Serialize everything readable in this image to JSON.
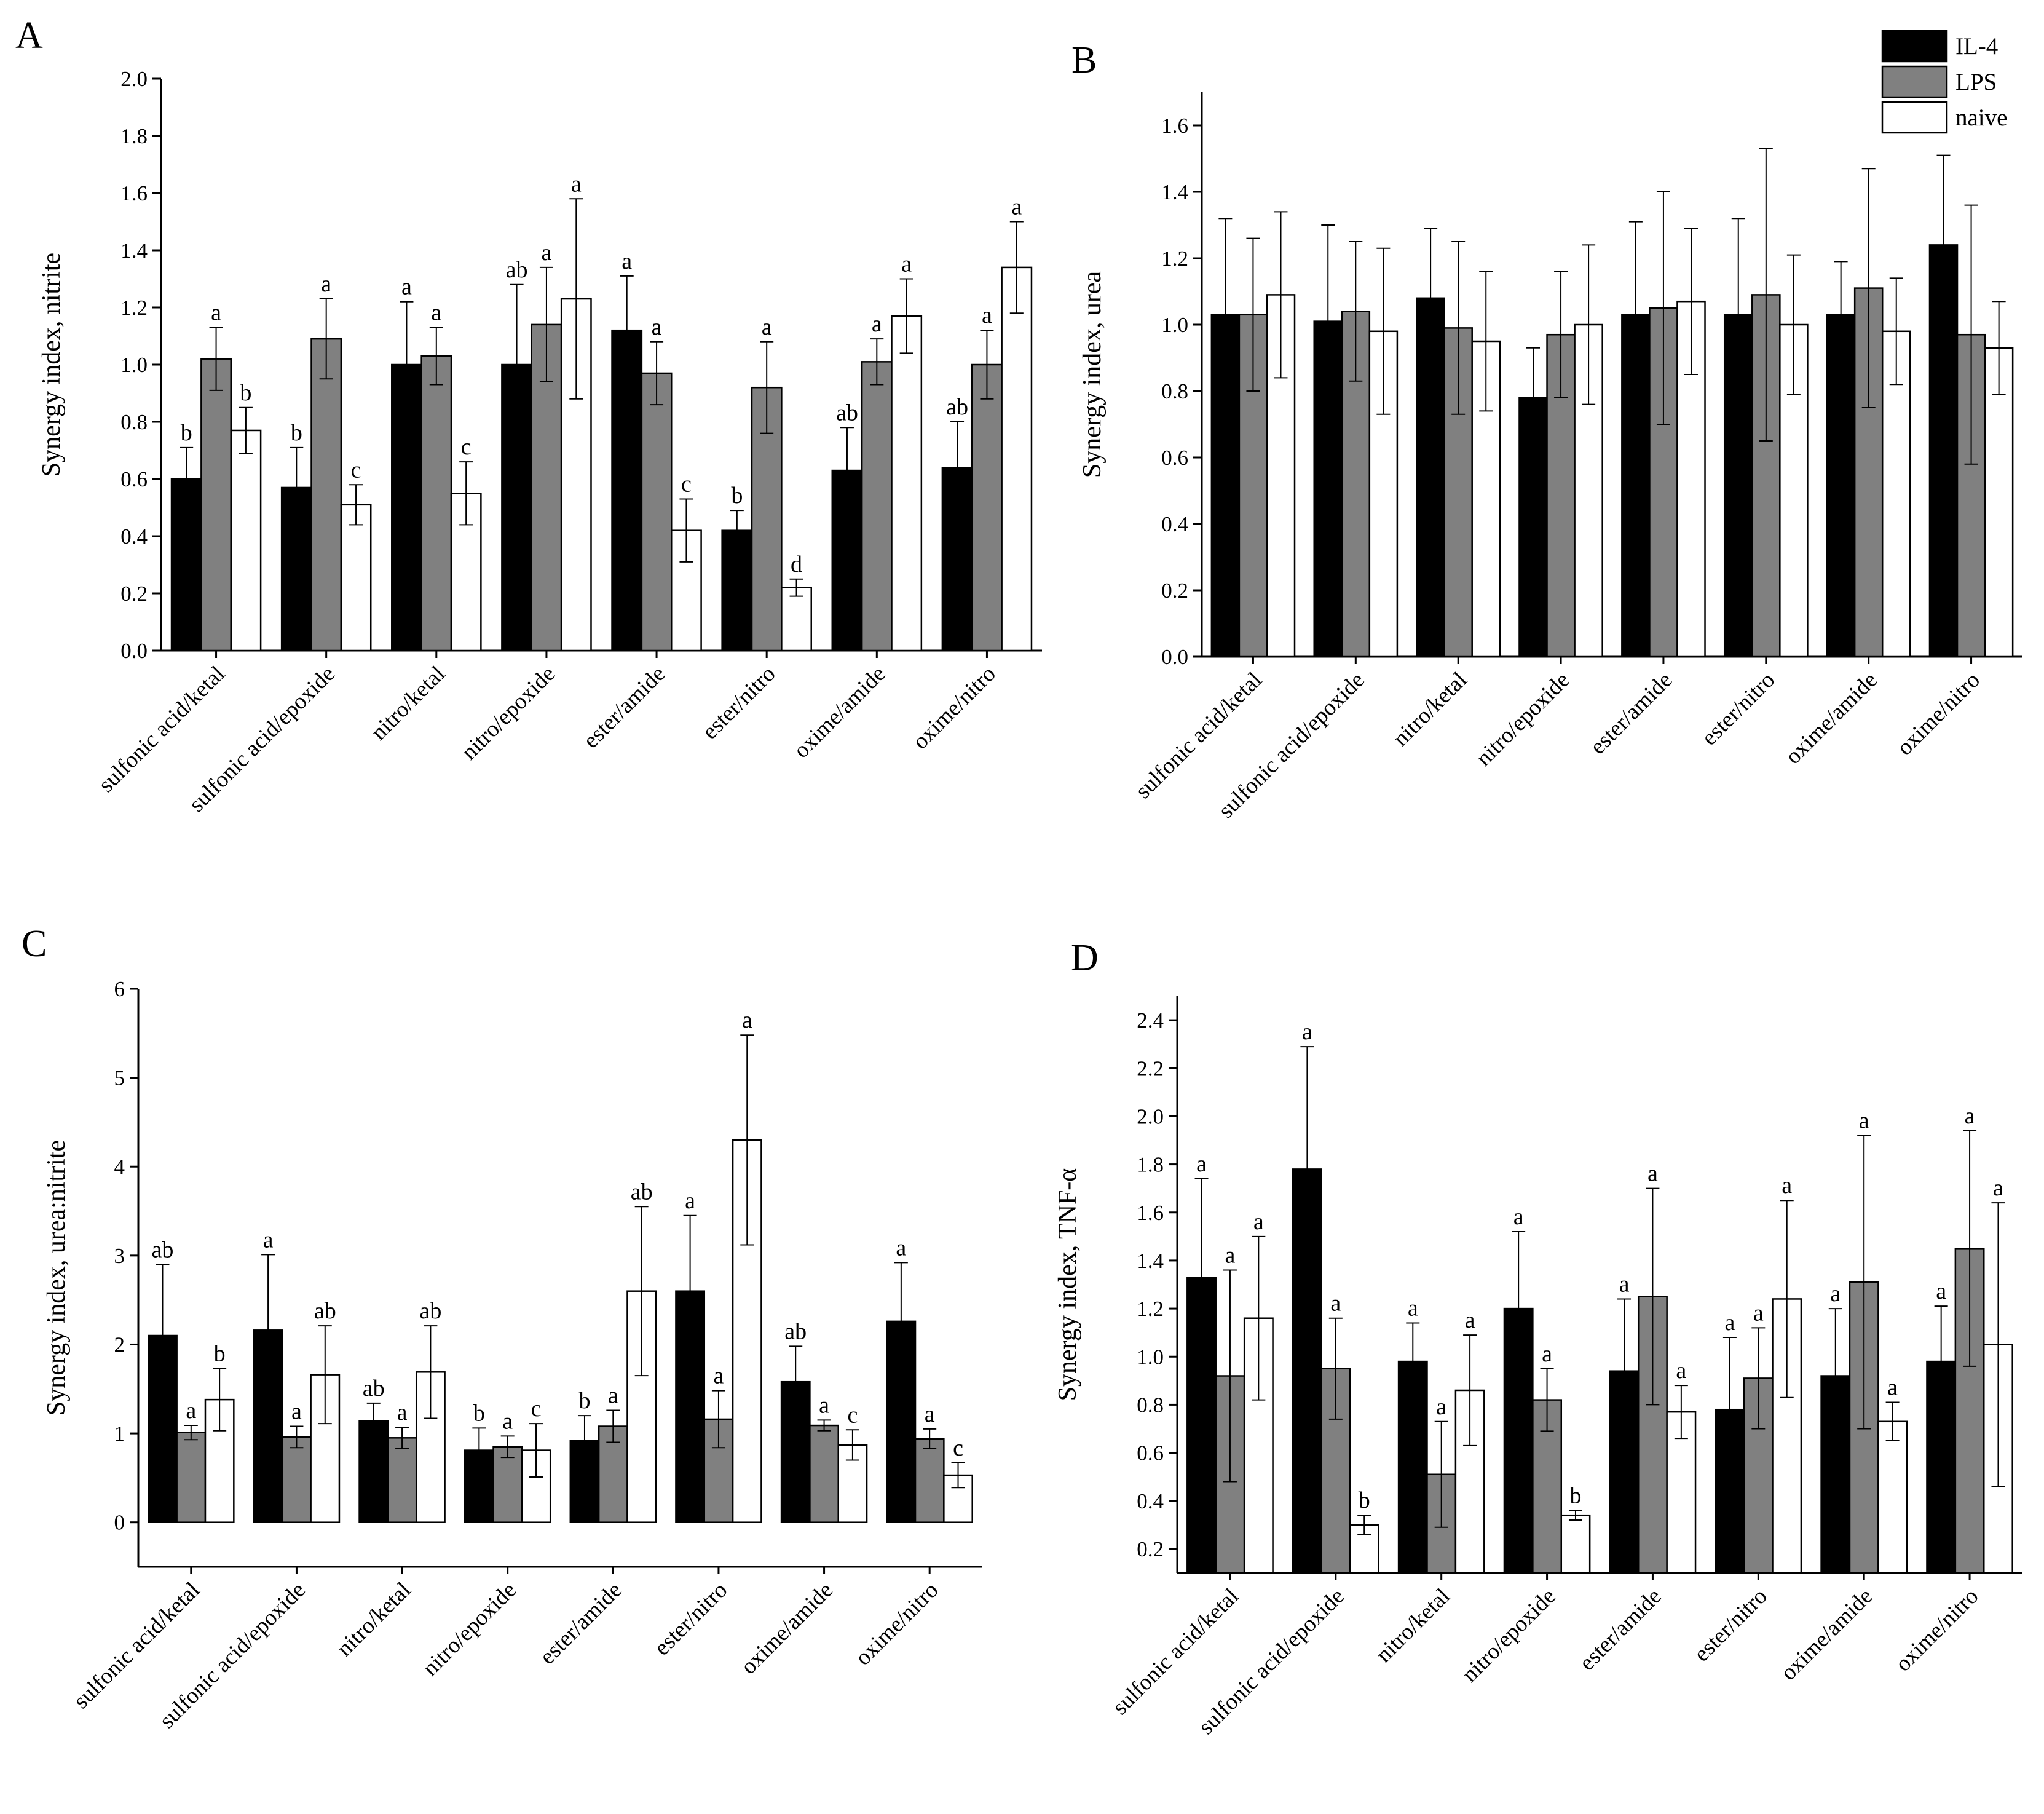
{
  "chart_data": [
    {
      "id": "A",
      "type": "bar",
      "panel_label": "A",
      "ylabel": "Synergy index, nitrite",
      "xlabel": "",
      "ylim": [
        0,
        2.0
      ],
      "yticks": [
        "0.0",
        "0.2",
        "0.4",
        "0.6",
        "0.8",
        "1.0",
        "1.2",
        "1.4",
        "1.6",
        "1.8",
        "2.0"
      ],
      "categories": [
        "sulfonic acid/ketal",
        "sulfonic acid/epoxide",
        "nitro/ketal",
        "nitro/epoxide",
        "ester/amide",
        "ester/nitro",
        "oxime/amide",
        "oxime/nitro"
      ],
      "series": [
        {
          "name": "IL-4",
          "values": [
            0.6,
            0.57,
            1.0,
            1.0,
            1.12,
            0.42,
            0.63,
            0.64
          ],
          "errors": [
            0.11,
            0.14,
            0.22,
            0.28,
            0.19,
            0.07,
            0.15,
            0.16
          ],
          "labels": [
            "b",
            "b",
            "a",
            "ab",
            "a",
            "b",
            "ab",
            "ab"
          ]
        },
        {
          "name": "LPS",
          "values": [
            1.02,
            1.09,
            1.03,
            1.14,
            0.97,
            0.92,
            1.01,
            1.0
          ],
          "errors": [
            0.11,
            0.14,
            0.1,
            0.2,
            0.11,
            0.16,
            0.08,
            0.12
          ],
          "labels": [
            "a",
            "a",
            "a",
            "a",
            "a",
            "a",
            "a",
            "a"
          ]
        },
        {
          "name": "naive",
          "values": [
            0.77,
            0.51,
            0.55,
            1.23,
            0.42,
            0.22,
            1.17,
            1.34
          ],
          "errors": [
            0.08,
            0.07,
            0.11,
            0.35,
            0.11,
            0.03,
            0.13,
            0.16
          ],
          "labels": [
            "b",
            "c",
            "c",
            "a",
            "c",
            "d",
            "a",
            "a"
          ]
        }
      ]
    },
    {
      "id": "B",
      "type": "bar",
      "panel_label": "B",
      "ylabel": "Synergy index, urea",
      "xlabel": "",
      "ylim": [
        0,
        1.7
      ],
      "yticks": [
        "0.0",
        "0.2",
        "0.4",
        "0.6",
        "0.8",
        "1.0",
        "1.2",
        "1.4",
        "1.6"
      ],
      "categories": [
        "sulfonic acid/ketal",
        "sulfonic acid/epoxide",
        "nitro/ketal",
        "nitro/epoxide",
        "ester/amide",
        "ester/nitro",
        "oxime/amide",
        "oxime/nitro"
      ],
      "series": [
        {
          "name": "IL-4",
          "values": [
            1.03,
            1.01,
            1.08,
            0.78,
            1.03,
            1.03,
            1.03,
            1.24
          ],
          "errors": [
            0.29,
            0.29,
            0.21,
            0.15,
            0.28,
            0.29,
            0.16,
            0.27
          ],
          "labels": []
        },
        {
          "name": "LPS",
          "values": [
            1.03,
            1.04,
            0.99,
            0.97,
            1.05,
            1.09,
            1.11,
            0.97
          ],
          "errors": [
            0.23,
            0.21,
            0.26,
            0.19,
            0.35,
            0.44,
            0.36,
            0.39
          ],
          "labels": []
        },
        {
          "name": "naive",
          "values": [
            1.09,
            0.98,
            0.95,
            1.0,
            1.07,
            1.0,
            0.98,
            0.93
          ],
          "errors": [
            0.25,
            0.25,
            0.21,
            0.24,
            0.22,
            0.21,
            0.16,
            0.14
          ],
          "labels": []
        }
      ],
      "legend": {
        "placement": "top-right",
        "entries": [
          "IL-4",
          "LPS",
          "naive"
        ]
      }
    },
    {
      "id": "C",
      "type": "bar",
      "panel_label": "C",
      "ylabel": "Synergy index, urea:nitrite",
      "xlabel": "",
      "ylim": [
        -0.5,
        6
      ],
      "yticks": [
        "0",
        "1",
        "2",
        "3",
        "4",
        "5",
        "6"
      ],
      "categories": [
        "sulfonic acid/ketal",
        "sulfonic acid/epoxide",
        "nitro/ketal",
        "nitro/epoxide",
        "ester/amide",
        "ester/nitro",
        "oxime/amide",
        "oxime/nitro"
      ],
      "series": [
        {
          "name": "IL-4",
          "values": [
            2.1,
            2.16,
            1.14,
            0.81,
            0.92,
            2.6,
            1.58,
            2.26
          ],
          "errors": [
            0.8,
            0.85,
            0.2,
            0.25,
            0.28,
            0.85,
            0.4,
            0.66
          ],
          "labels": [
            "ab",
            "a",
            "ab",
            "b",
            "b",
            "a",
            "ab",
            "a"
          ]
        },
        {
          "name": "LPS",
          "values": [
            1.01,
            0.96,
            0.95,
            0.85,
            1.08,
            1.16,
            1.09,
            0.94
          ],
          "errors": [
            0.08,
            0.12,
            0.12,
            0.12,
            0.18,
            0.32,
            0.06,
            0.11
          ],
          "labels": [
            "a",
            "a",
            "a",
            "a",
            "a",
            "a",
            "a",
            "a"
          ]
        },
        {
          "name": "naive",
          "values": [
            1.38,
            1.66,
            1.69,
            0.81,
            2.6,
            4.3,
            0.87,
            0.53
          ],
          "errors": [
            0.35,
            0.55,
            0.52,
            0.3,
            0.95,
            1.18,
            0.17,
            0.14
          ],
          "labels": [
            "b",
            "ab",
            "ab",
            "c",
            "ab",
            "a",
            "c",
            "c"
          ]
        }
      ]
    },
    {
      "id": "D",
      "type": "bar",
      "panel_label": "D",
      "ylabel": "Synergy index, TNF-α",
      "xlabel": "",
      "ylim": [
        0.1,
        2.5
      ],
      "yticks": [
        "0.2",
        "0.4",
        "0.6",
        "0.8",
        "1.0",
        "1.2",
        "1.4",
        "1.6",
        "1.8",
        "2.0",
        "2.2",
        "2.4"
      ],
      "categories": [
        "sulfonic acid/ketal",
        "sulfonic acid/epoxide",
        "nitro/ketal",
        "nitro/epoxide",
        "ester/amide",
        "ester/nitro",
        "oxime/amide",
        "oxime/nitro"
      ],
      "series": [
        {
          "name": "IL-4",
          "values": [
            1.33,
            1.78,
            0.98,
            1.2,
            0.94,
            0.78,
            0.92,
            0.98
          ],
          "errors": [
            0.41,
            0.51,
            0.16,
            0.32,
            0.3,
            0.3,
            0.28,
            0.23
          ],
          "labels": [
            "a",
            "a",
            "a",
            "a",
            "a",
            "a",
            "a",
            "a"
          ]
        },
        {
          "name": "LPS",
          "values": [
            0.92,
            0.95,
            0.51,
            0.82,
            1.25,
            0.91,
            1.31,
            1.45
          ],
          "errors": [
            0.44,
            0.21,
            0.22,
            0.13,
            0.45,
            0.21,
            0.61,
            0.49
          ],
          "labels": [
            "a",
            "a",
            "a",
            "a",
            "a",
            "a",
            "a",
            "a"
          ]
        },
        {
          "name": "naive",
          "values": [
            1.16,
            0.3,
            0.86,
            0.34,
            0.77,
            1.24,
            0.73,
            1.05
          ],
          "errors": [
            0.34,
            0.04,
            0.23,
            0.02,
            0.11,
            0.41,
            0.08,
            0.59
          ],
          "labels": [
            "a",
            "b",
            "a",
            "b",
            "a",
            "a",
            "a",
            "a"
          ]
        }
      ]
    }
  ],
  "colors": {
    "IL-4": "#000000",
    "LPS": "#808080",
    "naive": "#ffffff",
    "outline": "#000000"
  }
}
